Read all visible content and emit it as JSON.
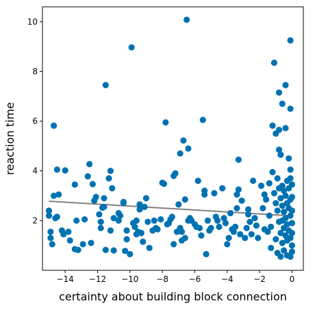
{
  "chart_data": {
    "type": "scatter",
    "title": "",
    "xlabel": "certainty about building block connection",
    "ylabel": "reaction time",
    "xlim": [
      -15.4,
      0.7
    ],
    "ylim": [
      0.0,
      10.6
    ],
    "xticks": [
      -14,
      -12,
      -10,
      -8,
      -6,
      -4,
      -2,
      0
    ],
    "yticks": [
      2,
      4,
      6,
      8,
      10
    ],
    "grid": false,
    "point_color": "#0072b2",
    "line_color": "#808080",
    "regression_line": {
      "x": [
        -15.0,
        0.0
      ],
      "y": [
        2.78,
        2.19
      ]
    },
    "series": [
      {
        "points": [
          [
            -15.0,
            2.4
          ],
          [
            -15.0,
            2.2
          ],
          [
            -14.9,
            1.55
          ],
          [
            -14.9,
            1.3
          ],
          [
            -14.8,
            1.05
          ],
          [
            -14.7,
            5.82
          ],
          [
            -14.7,
            3.0
          ],
          [
            -14.6,
            2.1
          ],
          [
            -14.5,
            2.15
          ],
          [
            -14.5,
            4.05
          ],
          [
            -14.4,
            3.05
          ],
          [
            -14.2,
            1.6
          ],
          [
            -14.1,
            1.45
          ],
          [
            -14.0,
            4.02
          ],
          [
            -13.8,
            1.55
          ],
          [
            -13.7,
            1.2
          ],
          [
            -13.4,
            0.85
          ],
          [
            -13.4,
            3.45
          ],
          [
            -13.3,
            2.0
          ],
          [
            -13.2,
            0.82
          ],
          [
            -12.9,
            1.05
          ],
          [
            -12.8,
            2.05
          ],
          [
            -12.6,
            3.78
          ],
          [
            -12.5,
            4.27
          ],
          [
            -12.4,
            1.1
          ],
          [
            -12.3,
            3.47
          ],
          [
            -12.2,
            2.8
          ],
          [
            -12.1,
            2.95
          ],
          [
            -11.9,
            2.25
          ],
          [
            -11.8,
            1.95
          ],
          [
            -11.8,
            1.7
          ],
          [
            -11.7,
            2.52
          ],
          [
            -11.6,
            2.9
          ],
          [
            -11.6,
            2.55
          ],
          [
            -11.5,
            7.45
          ],
          [
            -11.5,
            0.82
          ],
          [
            -11.3,
            3.7
          ],
          [
            -11.2,
            4.0
          ],
          [
            -11.2,
            1.6
          ],
          [
            -11.1,
            3.3
          ],
          [
            -11.0,
            0.8
          ],
          [
            -11.0,
            2.1
          ],
          [
            -10.7,
            2.3
          ],
          [
            -10.7,
            2.0
          ],
          [
            -10.6,
            2.2
          ],
          [
            -10.4,
            2.75
          ],
          [
            -10.4,
            2.7
          ],
          [
            -10.3,
            0.78
          ],
          [
            -10.2,
            1.25
          ],
          [
            -10.2,
            1.6
          ],
          [
            -10.0,
            0.65
          ],
          [
            -9.9,
            8.97
          ],
          [
            -9.8,
            1.9
          ],
          [
            -9.7,
            1.75
          ],
          [
            -9.6,
            2.0
          ],
          [
            -9.6,
            1.45
          ],
          [
            -9.5,
            1.55
          ],
          [
            -9.4,
            2.65
          ],
          [
            -9.4,
            2.45
          ],
          [
            -9.3,
            1.5
          ],
          [
            -9.2,
            1.15
          ],
          [
            -9.1,
            2.55
          ],
          [
            -9.0,
            2.9
          ],
          [
            -8.9,
            1.95
          ],
          [
            -8.8,
            0.9
          ],
          [
            -8.6,
            1.6
          ],
          [
            -8.5,
            2.0
          ],
          [
            -8.4,
            1.7
          ],
          [
            -8.3,
            1.65
          ],
          [
            -8.1,
            2.05
          ],
          [
            -8.0,
            3.52
          ],
          [
            -7.9,
            3.48
          ],
          [
            -7.8,
            5.95
          ],
          [
            -7.7,
            1.85
          ],
          [
            -7.6,
            1.9
          ],
          [
            -7.5,
            2.05
          ],
          [
            -7.4,
            2.15
          ],
          [
            -7.3,
            3.8
          ],
          [
            -7.3,
            1.05
          ],
          [
            -7.2,
            3.9
          ],
          [
            -7.1,
            1.55
          ],
          [
            -7.0,
            2.65
          ],
          [
            -6.9,
            4.7
          ],
          [
            -6.9,
            1.7
          ],
          [
            -6.8,
            1.2
          ],
          [
            -6.8,
            1.55
          ],
          [
            -6.7,
            5.22
          ],
          [
            -6.6,
            2.85
          ],
          [
            -6.6,
            1.3
          ],
          [
            -6.5,
            10.08
          ],
          [
            -6.4,
            4.9
          ],
          [
            -6.4,
            2.0
          ],
          [
            -6.3,
            2.1
          ],
          [
            -6.2,
            2.0
          ],
          [
            -6.0,
            1.85
          ],
          [
            -5.9,
            1.75
          ],
          [
            -5.8,
            3.6
          ],
          [
            -5.7,
            1.7
          ],
          [
            -5.6,
            1.4
          ],
          [
            -5.5,
            6.05
          ],
          [
            -5.4,
            3.2
          ],
          [
            -5.4,
            3.05
          ],
          [
            -5.3,
            0.65
          ],
          [
            -5.2,
            2.0
          ],
          [
            -5.1,
            1.6
          ],
          [
            -5.0,
            1.7
          ],
          [
            -4.8,
            3.1
          ],
          [
            -4.7,
            2.15
          ],
          [
            -4.6,
            2.0
          ],
          [
            -4.5,
            1.75
          ],
          [
            -4.3,
            3.3
          ],
          [
            -4.2,
            2.1
          ],
          [
            -4.1,
            1.9
          ],
          [
            -4.0,
            1.05
          ],
          [
            -3.9,
            1.3
          ],
          [
            -3.8,
            2.3
          ],
          [
            -3.7,
            1.65
          ],
          [
            -3.6,
            1.55
          ],
          [
            -3.5,
            1.75
          ],
          [
            -3.4,
            2.5
          ],
          [
            -3.4,
            3.05
          ],
          [
            -3.3,
            4.45
          ],
          [
            -3.3,
            3.25
          ],
          [
            -3.2,
            1.45
          ],
          [
            -3.1,
            2.8
          ],
          [
            -2.9,
            1.3
          ],
          [
            -2.8,
            1.7
          ],
          [
            -2.7,
            2.45
          ],
          [
            -2.7,
            2.25
          ],
          [
            -2.6,
            1.95
          ],
          [
            -2.5,
            1.45
          ],
          [
            -2.4,
            3.6
          ],
          [
            -2.3,
            2.1
          ],
          [
            -2.2,
            1.8
          ],
          [
            -2.1,
            1.3
          ],
          [
            -1.9,
            3.4
          ],
          [
            -1.8,
            2.5
          ],
          [
            -1.7,
            3.05
          ],
          [
            -1.7,
            1.65
          ],
          [
            -1.6,
            2.85
          ],
          [
            -1.5,
            1.55
          ],
          [
            -1.4,
            3.5
          ],
          [
            -1.4,
            2.2
          ],
          [
            -1.3,
            1.75
          ],
          [
            -1.3,
            0.9
          ],
          [
            -1.2,
            5.82
          ],
          [
            -1.2,
            3.95
          ],
          [
            -1.1,
            8.35
          ],
          [
            -1.1,
            3.1
          ],
          [
            -1.0,
            5.5
          ],
          [
            -1.0,
            2.7
          ],
          [
            -1.0,
            1.25
          ],
          [
            -0.9,
            3.7
          ],
          [
            -0.9,
            2.4
          ],
          [
            -0.9,
            0.7
          ],
          [
            -0.8,
            7.15
          ],
          [
            -0.8,
            5.65
          ],
          [
            -0.8,
            4.85
          ],
          [
            -0.8,
            3.3
          ],
          [
            -0.8,
            1.95
          ],
          [
            -0.7,
            4.65
          ],
          [
            -0.7,
            2.9
          ],
          [
            -0.7,
            1.5
          ],
          [
            -0.7,
            0.55
          ],
          [
            -0.6,
            6.7
          ],
          [
            -0.6,
            3.4
          ],
          [
            -0.6,
            2.6
          ],
          [
            -0.6,
            2.0
          ],
          [
            -0.6,
            1.1
          ],
          [
            -0.5,
            3.2
          ],
          [
            -0.5,
            2.35
          ],
          [
            -0.5,
            1.7
          ],
          [
            -0.5,
            0.8
          ],
          [
            -0.4,
            7.45
          ],
          [
            -0.4,
            5.72
          ],
          [
            -0.4,
            3.0
          ],
          [
            -0.4,
            2.1
          ],
          [
            -0.4,
            1.4
          ],
          [
            -0.3,
            3.6
          ],
          [
            -0.3,
            2.7
          ],
          [
            -0.3,
            1.85
          ],
          [
            -0.3,
            1.2
          ],
          [
            -0.3,
            0.6
          ],
          [
            -0.2,
            4.5
          ],
          [
            -0.2,
            3.3
          ],
          [
            -0.2,
            2.5
          ],
          [
            -0.2,
            1.6
          ],
          [
            -0.1,
            9.25
          ],
          [
            -0.1,
            6.5
          ],
          [
            -0.1,
            4.05
          ],
          [
            -0.1,
            3.7
          ],
          [
            -0.1,
            2.85
          ],
          [
            -0.1,
            2.2
          ],
          [
            -0.1,
            1.3
          ],
          [
            -0.1,
            0.55
          ],
          [
            0.0,
            3.45
          ],
          [
            0.0,
            2.95
          ],
          [
            0.0,
            2.4
          ],
          [
            0.0,
            1.9
          ],
          [
            0.0,
            1.5
          ],
          [
            0.0,
            1.0
          ],
          [
            0.0,
            0.75
          ]
        ]
      }
    ]
  }
}
